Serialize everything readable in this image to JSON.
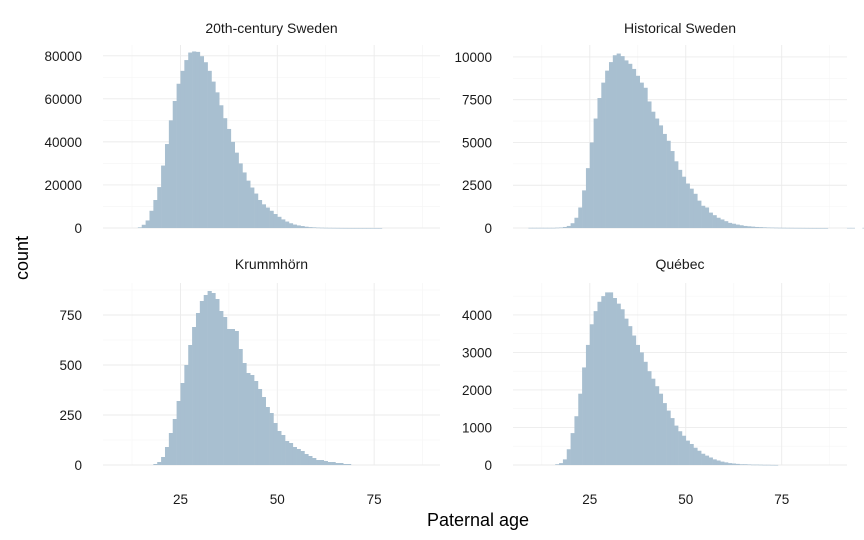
{
  "chart_data": {
    "type": "bar",
    "xlabel": "Paternal age",
    "ylabel": "count",
    "x_ticks": [
      25,
      50,
      75
    ],
    "xlim": [
      5,
      92
    ],
    "bar_color": "#a8bfd0",
    "grid": true,
    "panels": [
      {
        "title": "20th-century Sweden",
        "ylim": [
          0,
          85000
        ],
        "y_ticks": [
          0,
          20000,
          40000,
          60000,
          80000
        ],
        "bin_start": 13,
        "values": [
          0,
          300,
          1500,
          3500,
          8000,
          13000,
          19000,
          29000,
          39000,
          50000,
          59000,
          67000,
          73000,
          78000,
          81500,
          82000,
          81800,
          79800,
          77000,
          73000,
          68000,
          63000,
          57000,
          51000,
          46000,
          40000,
          35000,
          30000,
          25800,
          22000,
          18800,
          16000,
          13000,
          11000,
          9500,
          8000,
          6500,
          5200,
          4000,
          3000,
          2200,
          1600,
          1200,
          900,
          600,
          400,
          300,
          200,
          150,
          100,
          80,
          60,
          40,
          30,
          20,
          15,
          10,
          8,
          6,
          5,
          4,
          3,
          2,
          1
        ]
      },
      {
        "title": "Historical Sweden",
        "ylim": [
          0,
          10700
        ],
        "y_ticks": [
          0,
          2500,
          5000,
          7500,
          10000
        ],
        "bin_start": 9,
        "values": [
          10,
          10,
          10,
          10,
          10,
          10,
          10,
          20,
          30,
          60,
          120,
          280,
          600,
          1200,
          2200,
          3500,
          5000,
          6400,
          7600,
          8500,
          9200,
          9700,
          10100,
          10200,
          10050,
          9800,
          9600,
          9300,
          8900,
          8500,
          8200,
          7400,
          6800,
          6400,
          6000,
          5500,
          5100,
          4500,
          3900,
          3400,
          3000,
          2600,
          2300,
          2000,
          1600,
          1300,
          1200,
          900,
          750,
          600,
          500,
          400,
          300,
          250,
          200,
          160,
          120,
          100,
          80,
          60,
          50,
          40,
          30,
          25,
          20,
          15,
          12,
          10,
          8,
          6,
          5,
          4,
          3,
          2,
          1,
          1,
          1,
          1,
          0,
          0,
          0,
          0,
          0,
          10,
          10,
          0,
          0,
          10,
          10
        ]
      },
      {
        "title": "Krummhörn",
        "ylim": [
          0,
          910
        ],
        "y_ticks": [
          0,
          250,
          500,
          750
        ],
        "bin_start": 17,
        "values": [
          0,
          5,
          15,
          40,
          90,
          160,
          230,
          320,
          410,
          500,
          600,
          690,
          760,
          820,
          850,
          870,
          860,
          830,
          770,
          740,
          680,
          680,
          670,
          580,
          510,
          460,
          450,
          420,
          380,
          340,
          290,
          260,
          210,
          170,
          150,
          120,
          110,
          90,
          80,
          70,
          55,
          45,
          35,
          25,
          25,
          20,
          15,
          15,
          10,
          10,
          5,
          5
        ]
      },
      {
        "title": "Québec",
        "ylim": [
          0,
          4850
        ],
        "y_ticks": [
          0,
          1000,
          2000,
          3000,
          4000
        ],
        "bin_start": 16,
        "values": [
          20,
          50,
          150,
          420,
          850,
          1300,
          1900,
          2600,
          3200,
          3750,
          4100,
          4350,
          4500,
          4600,
          4600,
          4450,
          4300,
          4150,
          3900,
          3700,
          3450,
          3200,
          3000,
          2750,
          2500,
          2300,
          2100,
          1900,
          1650,
          1450,
          1250,
          1050,
          900,
          780,
          650,
          560,
          460,
          380,
          300,
          250,
          200,
          150,
          120,
          90,
          70,
          50,
          40,
          30,
          20,
          20,
          15,
          10,
          10,
          8,
          5,
          5,
          3,
          2
        ]
      }
    ]
  }
}
